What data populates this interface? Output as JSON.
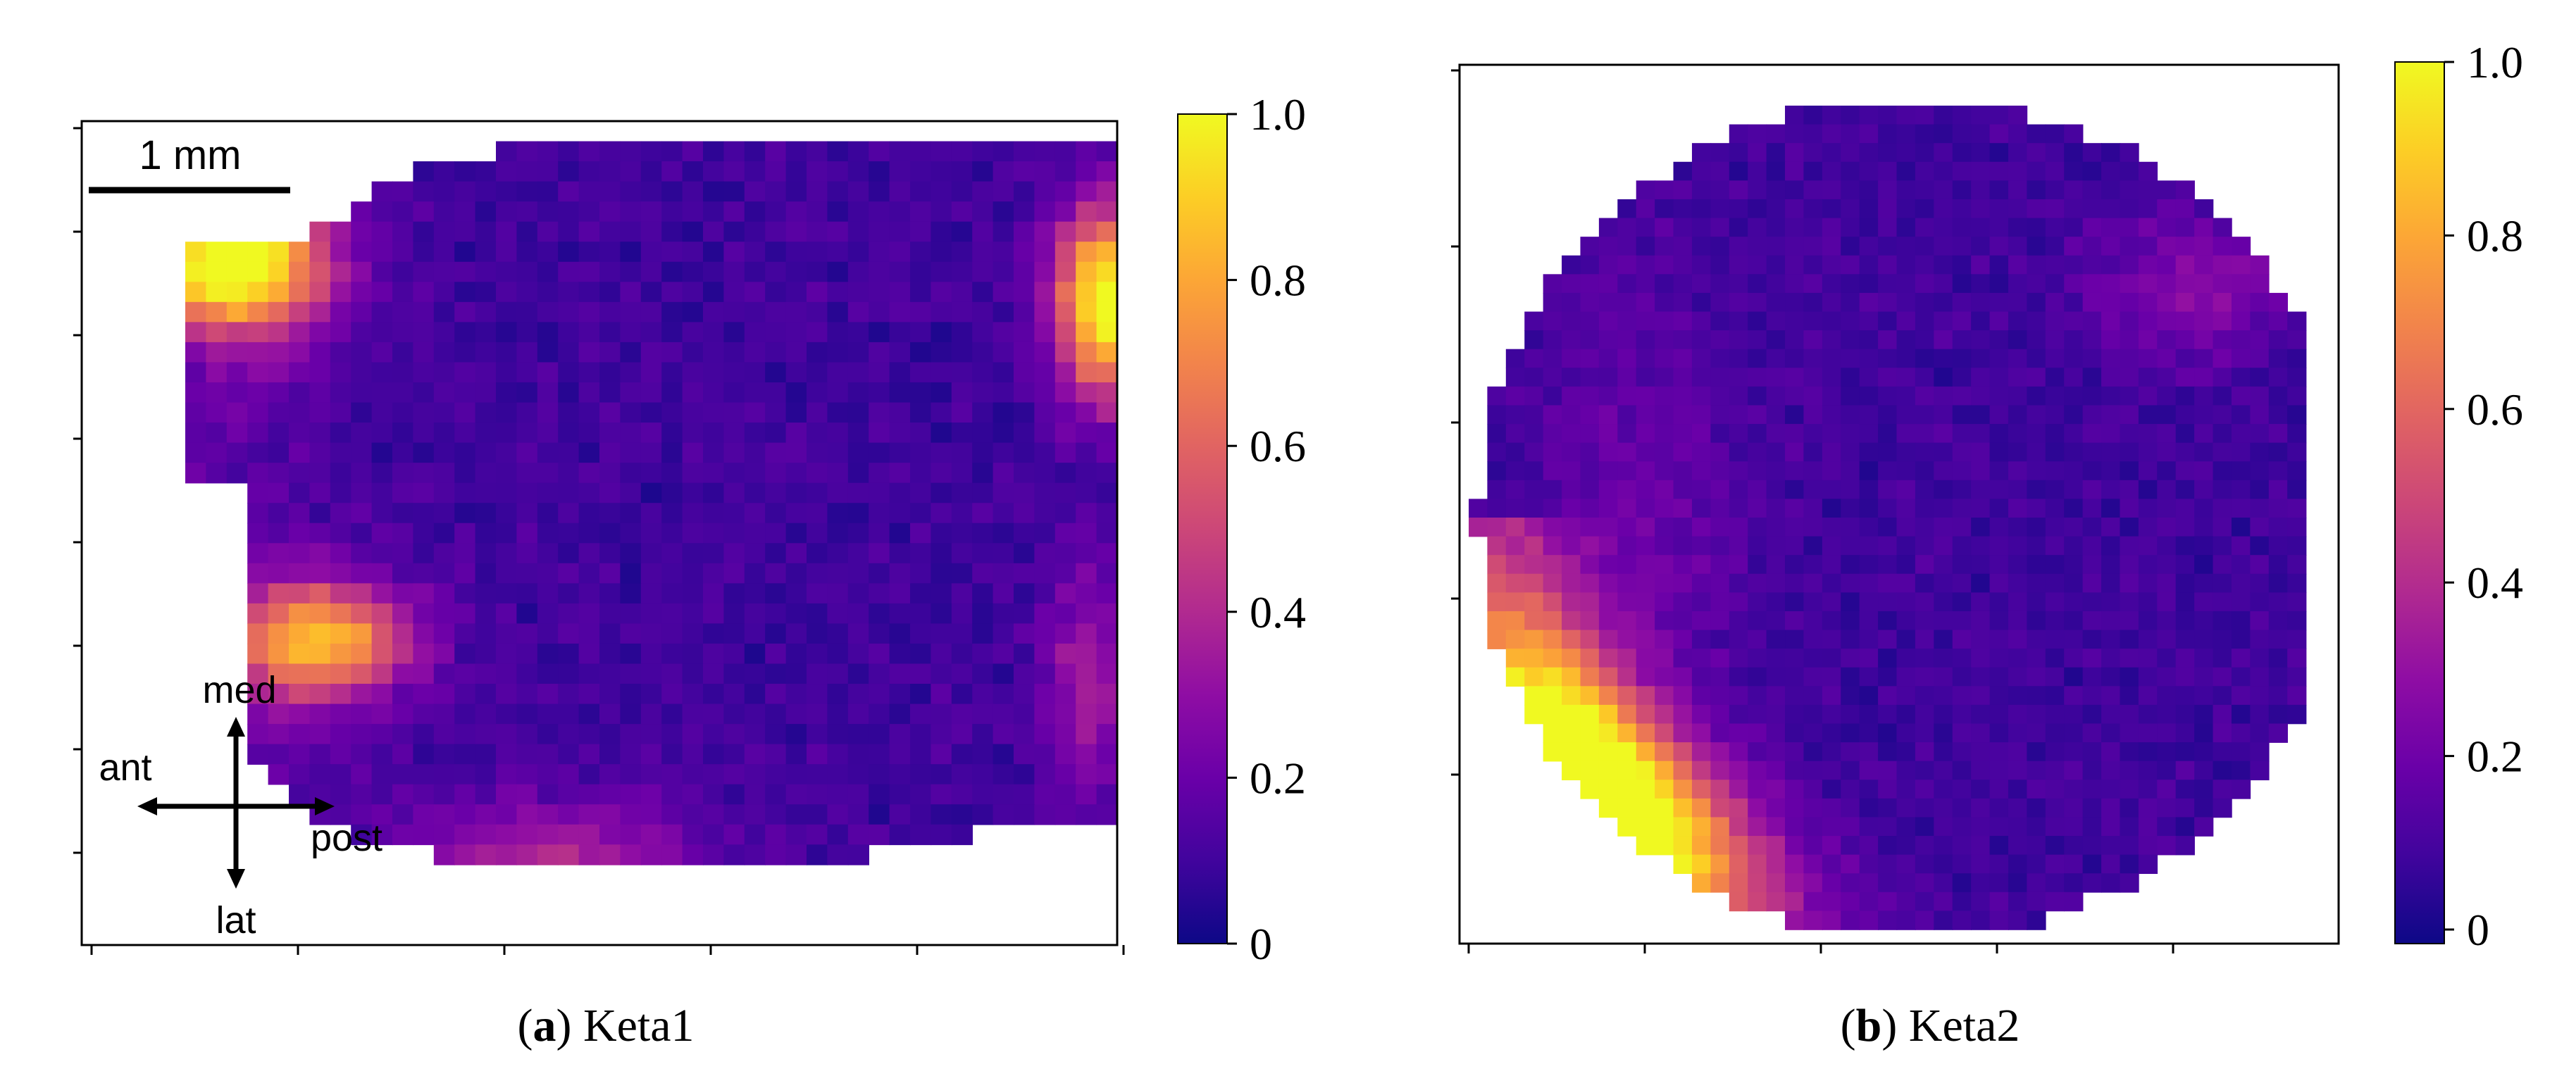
{
  "figure": {
    "panels": [
      {
        "caption_letter": "a",
        "caption_text": "Keta1",
        "scale_bar_label": "1 mm",
        "orientation": {
          "up": "med",
          "down": "lat",
          "left": "ant",
          "right": "post"
        }
      },
      {
        "caption_letter": "b",
        "caption_text": "Keta2"
      }
    ]
  },
  "chart_data": [
    {
      "type": "heatmap",
      "title": "",
      "xlabel": "",
      "ylabel": "",
      "colormap": "plasma",
      "colorbar": {
        "min": 0,
        "max": 1.0,
        "ticks": [
          "0",
          "0.2",
          "0.4",
          "0.6",
          "0.8",
          "1.0"
        ]
      },
      "grid_cells": [
        50,
        41
      ],
      "hotspots": [
        {
          "location": "upper-left",
          "value": 1.0
        },
        {
          "location": "right-edge upper",
          "value": 0.95
        },
        {
          "location": "left-middle",
          "value": 0.75
        },
        {
          "location": "bottom-center",
          "value": 0.35
        }
      ],
      "background_value": 0.1
    },
    {
      "type": "heatmap",
      "title": "",
      "xlabel": "",
      "ylabel": "",
      "colormap": "plasma",
      "colorbar": {
        "min": 0,
        "max": 1.0,
        "ticks": [
          "0",
          "0.2",
          "0.4",
          "0.6",
          "0.8",
          "1.0"
        ]
      },
      "grid_cells": [
        46,
        44
      ],
      "hotspots": [
        {
          "location": "lower-left rim",
          "value": 1.0
        },
        {
          "location": "upper-right",
          "value": 0.25
        }
      ],
      "background_value": 0.1
    }
  ]
}
